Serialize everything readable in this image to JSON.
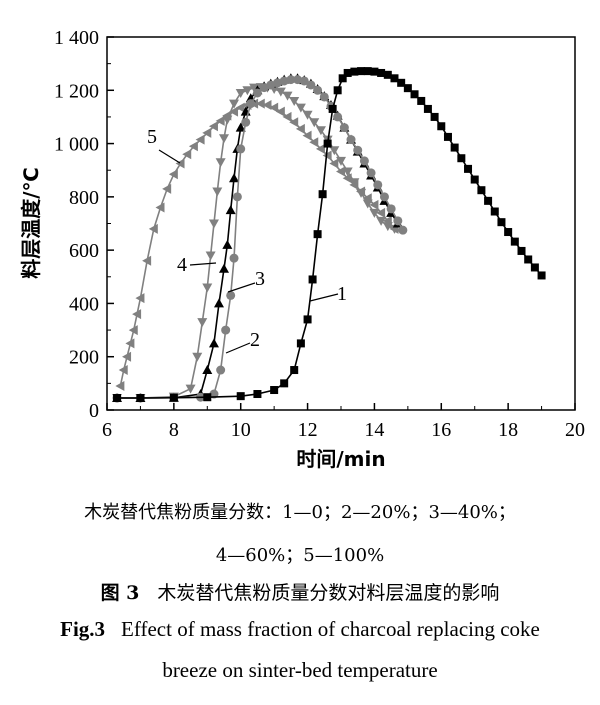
{
  "chart_data": {
    "type": "line",
    "xlabel": "时间/min",
    "ylabel": "料层温度/℃",
    "xlim": [
      6,
      20
    ],
    "ylim": [
      0,
      1400
    ],
    "x_ticks": [
      6,
      8,
      10,
      12,
      14,
      16,
      18,
      20
    ],
    "y_ticks": [
      0,
      200,
      400,
      600,
      800,
      1000,
      1200,
      1400
    ],
    "x_tick_labels": [
      "6",
      "8",
      "10",
      "12",
      "14",
      "16",
      "18",
      "20"
    ],
    "y_tick_labels": [
      "0",
      "200",
      "400",
      "600",
      "800",
      "1 000",
      "1 200",
      "1 400"
    ],
    "grid": false,
    "series": [
      {
        "name": "1",
        "marker": "square",
        "color": "#000000",
        "x": [
          6.3,
          7.0,
          8.0,
          9.0,
          10.0,
          10.5,
          11.0,
          11.3,
          11.6,
          11.8,
          12.0,
          12.15,
          12.3,
          12.45,
          12.6,
          12.75,
          12.9,
          13.05,
          13.2,
          13.4,
          13.6,
          13.8,
          14.0,
          14.2,
          14.4,
          14.6,
          14.8,
          15.0,
          15.2,
          15.4,
          15.6,
          15.8,
          16.0,
          16.2,
          16.4,
          16.6,
          16.8,
          17.0,
          17.2,
          17.4,
          17.6,
          17.8,
          18.0,
          18.2,
          18.4,
          18.6,
          18.8,
          19.0
        ],
        "y": [
          45,
          45,
          46,
          48,
          52,
          60,
          75,
          100,
          150,
          250,
          340,
          490,
          660,
          810,
          1000,
          1130,
          1200,
          1245,
          1265,
          1270,
          1272,
          1272,
          1270,
          1265,
          1258,
          1245,
          1228,
          1208,
          1185,
          1160,
          1130,
          1100,
          1065,
          1025,
          985,
          945,
          905,
          865,
          825,
          785,
          745,
          705,
          668,
          632,
          597,
          565,
          535,
          505
        ]
      },
      {
        "name": "2",
        "marker": "circle",
        "color": "#808080",
        "x": [
          6.3,
          7.0,
          8.0,
          8.8,
          9.2,
          9.4,
          9.55,
          9.7,
          9.8,
          9.9,
          10.0,
          10.15,
          10.3,
          10.5,
          10.7,
          10.9,
          11.1,
          11.3,
          11.5,
          11.7,
          11.9,
          12.1,
          12.3,
          12.5,
          12.7,
          12.9,
          13.1,
          13.3,
          13.5,
          13.7,
          13.9,
          14.1,
          14.3,
          14.5,
          14.7,
          14.85
        ],
        "y": [
          45,
          45,
          46,
          48,
          60,
          150,
          300,
          430,
          570,
          800,
          980,
          1080,
          1150,
          1190,
          1210,
          1220,
          1228,
          1235,
          1240,
          1240,
          1235,
          1220,
          1200,
          1175,
          1140,
          1100,
          1060,
          1015,
          975,
          935,
          890,
          845,
          800,
          755,
          710,
          675
        ]
      },
      {
        "name": "3",
        "marker": "triangle-up",
        "color": "#000000",
        "x": [
          6.3,
          7.0,
          8.0,
          8.8,
          9.0,
          9.2,
          9.35,
          9.5,
          9.6,
          9.7,
          9.8,
          9.9,
          10.0,
          10.15,
          10.3,
          10.5,
          10.7,
          10.9,
          11.1,
          11.3,
          11.5,
          11.7,
          11.9,
          12.1,
          12.3,
          12.5,
          12.7,
          12.9,
          13.1,
          13.3,
          13.5,
          13.7,
          13.9,
          14.1,
          14.3,
          14.5,
          14.7
        ],
        "y": [
          45,
          45,
          46,
          60,
          150,
          250,
          400,
          530,
          620,
          750,
          870,
          980,
          1060,
          1120,
          1170,
          1200,
          1215,
          1225,
          1232,
          1240,
          1245,
          1245,
          1238,
          1225,
          1205,
          1178,
          1145,
          1105,
          1060,
          1015,
          970,
          925,
          880,
          835,
          785,
          740,
          700
        ]
      },
      {
        "name": "4",
        "marker": "triangle-down",
        "color": "#808080",
        "x": [
          6.3,
          7.0,
          8.0,
          8.5,
          8.7,
          8.85,
          9.0,
          9.1,
          9.2,
          9.3,
          9.4,
          9.5,
          9.6,
          9.8,
          10.0,
          10.2,
          10.4,
          10.6,
          10.8,
          11.0,
          11.2,
          11.4,
          11.6,
          11.8,
          12.0,
          12.2,
          12.4,
          12.6,
          12.8,
          13.0,
          13.2,
          13.4,
          13.6,
          13.8,
          14.0,
          14.2,
          14.4,
          14.6
        ],
        "y": [
          45,
          45,
          50,
          80,
          200,
          330,
          460,
          580,
          700,
          820,
          930,
          1020,
          1090,
          1150,
          1190,
          1200,
          1210,
          1212,
          1210,
          1205,
          1195,
          1180,
          1160,
          1135,
          1108,
          1080,
          1050,
          1015,
          975,
          935,
          895,
          855,
          815,
          775,
          740,
          710,
          690,
          680
        ]
      },
      {
        "name": "5",
        "marker": "triangle-left",
        "color": "#808080",
        "x": [
          6.4,
          6.5,
          6.6,
          6.7,
          6.8,
          6.9,
          7.0,
          7.2,
          7.4,
          7.6,
          7.8,
          8.0,
          8.2,
          8.4,
          8.6,
          8.8,
          9.0,
          9.2,
          9.4,
          9.6,
          9.8,
          10.0,
          10.2,
          10.4,
          10.6,
          10.8,
          11.0,
          11.2,
          11.4,
          11.6,
          11.8,
          12.0,
          12.2,
          12.4,
          12.6,
          12.8,
          13.0,
          13.2,
          13.4,
          13.6,
          13.8,
          14.0,
          14.2,
          14.4,
          14.6
        ],
        "y": [
          90,
          150,
          200,
          250,
          300,
          360,
          420,
          560,
          680,
          760,
          830,
          885,
          925,
          960,
          990,
          1015,
          1040,
          1065,
          1085,
          1105,
          1120,
          1135,
          1145,
          1150,
          1150,
          1145,
          1135,
          1120,
          1100,
          1080,
          1055,
          1030,
          1005,
          980,
          955,
          925,
          895,
          870,
          845,
          820,
          795,
          770,
          740,
          710,
          680
        ]
      }
    ],
    "series_label_texts": [
      "1",
      "2",
      "3",
      "4",
      "5"
    ]
  },
  "legend_line1": "木炭替代焦粉质量分数：1—0；2—20%；3—40%；",
  "legend_line2": "4—60%；5—100%",
  "caption_cn_fig": "图 3",
  "caption_cn_text": "木炭替代焦粉质量分数对料层温度的影响",
  "caption_en_fig": "Fig.3",
  "caption_en_text1": "Effect of mass fraction of charcoal replacing coke",
  "caption_en_text2": "breeze on sinter-bed temperature"
}
